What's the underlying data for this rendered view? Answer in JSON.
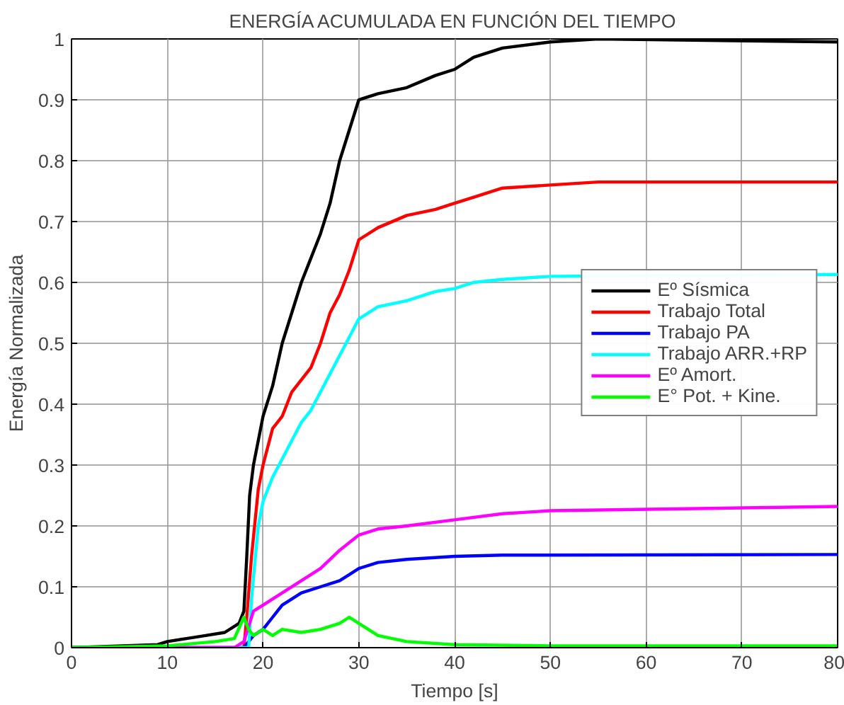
{
  "chart_data": {
    "type": "line",
    "title": "ENERGÍA ACUMULADA EN FUNCIÓN DEL TIEMPO",
    "xlabel": "Tiempo [s]",
    "ylabel": "Energía Normalizada",
    "xlim": [
      0,
      80
    ],
    "ylim": [
      0,
      1
    ],
    "xticks": [
      0,
      10,
      20,
      30,
      40,
      50,
      60,
      70,
      80
    ],
    "yticks": [
      0,
      0.1,
      0.2,
      0.3,
      0.4,
      0.5,
      0.6,
      0.7,
      0.8,
      0.9,
      1
    ],
    "grid": true,
    "legend": "right",
    "line_style": "solid",
    "marker": "none",
    "series": [
      {
        "name": "Eº Sísmica",
        "color": "#000000",
        "x": [
          0,
          9,
          10,
          12,
          14,
          16,
          17.5,
          18,
          18.3,
          18.6,
          19,
          20,
          21,
          22,
          23,
          24,
          25,
          26,
          27,
          28,
          29,
          30,
          32,
          35,
          38,
          40,
          42,
          45,
          50,
          55,
          80
        ],
        "values": [
          0,
          0.005,
          0.01,
          0.015,
          0.02,
          0.025,
          0.04,
          0.06,
          0.15,
          0.25,
          0.3,
          0.38,
          0.43,
          0.5,
          0.55,
          0.6,
          0.64,
          0.68,
          0.73,
          0.8,
          0.85,
          0.9,
          0.91,
          0.92,
          0.94,
          0.95,
          0.97,
          0.985,
          0.995,
          1,
          0.995
        ]
      },
      {
        "name": "Trabajo Total",
        "color": "#ff0000",
        "x": [
          0,
          18,
          18.3,
          18.8,
          19.5,
          20,
          21,
          22,
          23,
          24,
          25,
          26,
          27,
          28,
          29,
          30,
          32,
          35,
          38,
          40,
          42,
          45,
          50,
          55,
          80
        ],
        "values": [
          0,
          0,
          0.05,
          0.15,
          0.26,
          0.3,
          0.36,
          0.38,
          0.42,
          0.44,
          0.46,
          0.5,
          0.55,
          0.58,
          0.62,
          0.67,
          0.69,
          0.71,
          0.72,
          0.73,
          0.74,
          0.755,
          0.76,
          0.765,
          0.765
        ]
      },
      {
        "name": "Trabajo PA",
        "color": "#0000ff",
        "x": [
          0,
          18,
          19,
          20,
          21,
          21.5,
          22,
          24,
          26,
          28,
          29,
          30,
          32,
          35,
          40,
          45,
          80
        ],
        "values": [
          0,
          0,
          0.02,
          0.03,
          0.05,
          0.06,
          0.07,
          0.09,
          0.1,
          0.11,
          0.12,
          0.13,
          0.14,
          0.145,
          0.15,
          0.152,
          0.153
        ]
      },
      {
        "name": "Trabajo ARR.+RP",
        "color": "#00ffff",
        "x": [
          0,
          18.5,
          18.8,
          19.5,
          20,
          21,
          22,
          23,
          24,
          25,
          26,
          27,
          28,
          29,
          30,
          32,
          35,
          38,
          40,
          42,
          45,
          50,
          80
        ],
        "values": [
          0,
          0,
          0.08,
          0.2,
          0.24,
          0.28,
          0.31,
          0.34,
          0.37,
          0.39,
          0.42,
          0.45,
          0.48,
          0.51,
          0.54,
          0.56,
          0.57,
          0.585,
          0.59,
          0.6,
          0.605,
          0.61,
          0.613
        ]
      },
      {
        "name": "Eº Amort.",
        "color": "#ff00ff",
        "x": [
          0,
          17,
          18,
          19,
          20,
          22,
          24,
          26,
          28,
          30,
          32,
          35,
          40,
          45,
          50,
          80
        ],
        "values": [
          0,
          0,
          0.01,
          0.06,
          0.07,
          0.09,
          0.11,
          0.13,
          0.16,
          0.185,
          0.195,
          0.2,
          0.21,
          0.22,
          0.225,
          0.232
        ]
      },
      {
        "name": "E° Pot. + Kine.",
        "color": "#00ff00",
        "x": [
          0,
          10,
          15,
          17,
          18,
          18.5,
          19,
          20,
          21,
          22,
          24,
          26,
          28,
          29,
          30,
          32,
          35,
          40,
          50,
          80
        ],
        "values": [
          0,
          0.003,
          0.01,
          0.015,
          0.05,
          0.03,
          0.02,
          0.03,
          0.02,
          0.03,
          0.025,
          0.03,
          0.04,
          0.05,
          0.04,
          0.02,
          0.01,
          0.005,
          0.003,
          0.003
        ]
      }
    ]
  }
}
